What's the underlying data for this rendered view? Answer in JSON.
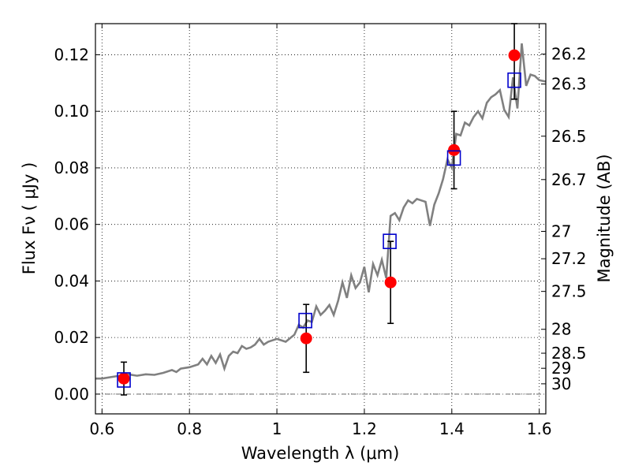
{
  "chart_data": {
    "type": "line",
    "xlabel": "Wavelength  λ (μm)",
    "ylabel": "Flux  Fν  ( μJy )",
    "y2label": "Magnitude (AB)",
    "xlim": [
      0.585,
      1.615
    ],
    "ylim": [
      -0.007,
      0.131
    ],
    "grid": true,
    "x_ticks": [
      {
        "value": 0.6,
        "label": "0.6"
      },
      {
        "value": 0.8,
        "label": "0.8"
      },
      {
        "value": 1.0,
        "label": "1"
      },
      {
        "value": 1.2,
        "label": "1.2"
      },
      {
        "value": 1.4,
        "label": "1.4"
      },
      {
        "value": 1.6,
        "label": "1.6"
      }
    ],
    "y_ticks": [
      {
        "value": 0.0,
        "label": "0.00"
      },
      {
        "value": 0.02,
        "label": "0.02"
      },
      {
        "value": 0.04,
        "label": "0.04"
      },
      {
        "value": 0.06,
        "label": "0.06"
      },
      {
        "value": 0.08,
        "label": "0.08"
      },
      {
        "value": 0.1,
        "label": "0.10"
      },
      {
        "value": 0.12,
        "label": "0.12"
      }
    ],
    "mag_ticks": [
      {
        "label": "26.2",
        "mag": 26.2
      },
      {
        "label": "26.3",
        "mag": 26.3
      },
      {
        "label": "26.5",
        "mag": 26.5
      },
      {
        "label": "26.7",
        "mag": 26.7
      },
      {
        "label": "27",
        "mag": 27.0
      },
      {
        "label": "27.2",
        "mag": 27.2
      },
      {
        "label": "27.5",
        "mag": 27.5
      },
      {
        "label": "28",
        "mag": 28.0
      },
      {
        "label": "28.5",
        "mag": 28.5
      },
      {
        "label": "29",
        "mag": 29.0
      },
      {
        "label": "30",
        "mag": 30.0
      }
    ],
    "spectrum": {
      "color": "#808080",
      "x": [
        0.585,
        0.6,
        0.62,
        0.64,
        0.66,
        0.68,
        0.7,
        0.72,
        0.74,
        0.76,
        0.77,
        0.78,
        0.8,
        0.82,
        0.83,
        0.84,
        0.85,
        0.86,
        0.87,
        0.88,
        0.89,
        0.9,
        0.91,
        0.92,
        0.93,
        0.94,
        0.95,
        0.96,
        0.97,
        0.98,
        0.99,
        1.0,
        1.02,
        1.04,
        1.05,
        1.06,
        1.07,
        1.08,
        1.09,
        1.1,
        1.11,
        1.12,
        1.13,
        1.14,
        1.15,
        1.16,
        1.17,
        1.18,
        1.19,
        1.2,
        1.21,
        1.22,
        1.23,
        1.24,
        1.25,
        1.26,
        1.27,
        1.28,
        1.29,
        1.3,
        1.31,
        1.32,
        1.33,
        1.34,
        1.35,
        1.36,
        1.37,
        1.38,
        1.39,
        1.4,
        1.41,
        1.42,
        1.43,
        1.44,
        1.45,
        1.46,
        1.47,
        1.48,
        1.49,
        1.5,
        1.51,
        1.52,
        1.53,
        1.54,
        1.55,
        1.56,
        1.57,
        1.58,
        1.59,
        1.6,
        1.615
      ],
      "y": [
        0.0055,
        0.0055,
        0.006,
        0.0065,
        0.007,
        0.0065,
        0.007,
        0.0068,
        0.0075,
        0.0085,
        0.0078,
        0.009,
        0.0095,
        0.0105,
        0.0125,
        0.0105,
        0.0135,
        0.011,
        0.014,
        0.009,
        0.0135,
        0.015,
        0.0145,
        0.017,
        0.016,
        0.0165,
        0.0175,
        0.0195,
        0.0175,
        0.0185,
        0.019,
        0.0195,
        0.0185,
        0.021,
        0.0245,
        0.0235,
        0.026,
        0.0255,
        0.031,
        0.028,
        0.0295,
        0.0315,
        0.028,
        0.033,
        0.0395,
        0.034,
        0.042,
        0.0375,
        0.0395,
        0.045,
        0.036,
        0.046,
        0.042,
        0.0475,
        0.041,
        0.063,
        0.064,
        0.0615,
        0.066,
        0.0685,
        0.0675,
        0.069,
        0.0685,
        0.068,
        0.0595,
        0.067,
        0.071,
        0.076,
        0.083,
        0.08,
        0.092,
        0.0915,
        0.096,
        0.095,
        0.098,
        0.1,
        0.0975,
        0.103,
        0.105,
        0.106,
        0.1075,
        0.1005,
        0.098,
        0.112,
        0.101,
        0.124,
        0.109,
        0.113,
        0.1125,
        0.111,
        0.1105
      ]
    },
    "series": [
      {
        "marker": "open-square",
        "color": "#0000cc",
        "x": [
          0.65,
          1.065,
          1.258,
          1.405,
          1.543
        ],
        "y": [
          0.005,
          0.026,
          0.054,
          0.0835,
          0.111
        ]
      },
      {
        "marker": "filled-circle",
        "color": "#ff0000",
        "x": [
          0.65,
          1.067,
          1.26,
          1.405,
          1.543
        ],
        "y": [
          0.0055,
          0.0197,
          0.0395,
          0.0863,
          0.1198
        ],
        "yerr": [
          0.0058,
          0.012,
          0.0145,
          0.0137,
          0.0155
        ]
      }
    ]
  }
}
